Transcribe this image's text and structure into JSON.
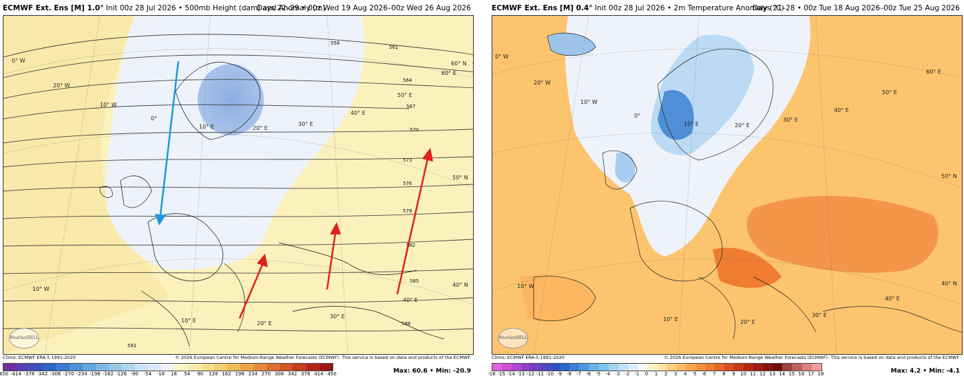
{
  "left": {
    "title_bold": "ECMWF Ext. Ens [M] 1.0°",
    "title_rest": "Init 00z 28 Jul 2026 • 500mb Height (dam) and Anomaly (m)",
    "title_right": "Days 22–29 • 00z Wed 19 Aug 2026–00z Wed 26 Aug 2026",
    "climo": "Climo: ECMWF ERA-5 1991-2020",
    "copyright": "© 2026 European Centre for Medium-Range Weather Forecasts (ECMWF). This service is based on data and products of the ECMWF.",
    "max_text": "Max: 60.6 • Min: -20.9",
    "logo": "WeatherBELL",
    "colorbar_ticks": [
      "-450",
      "-414",
      "-378",
      "-342",
      "-306",
      "-270",
      "-234",
      "-198",
      "-162",
      "-126",
      "-90",
      "-54",
      "-18",
      "18",
      "54",
      "90",
      "126",
      "162",
      "198",
      "234",
      "270",
      "306",
      "342",
      "378",
      "414",
      "450"
    ],
    "colorbar_colors": [
      "#6f2fa0",
      "#5a3fb5",
      "#3f4fc0",
      "#2e63c8",
      "#3a7ad0",
      "#4f92d8",
      "#66a6de",
      "#7fb8e3",
      "#98c8e8",
      "#b0d6ee",
      "#c8e2f3",
      "#dce9f8",
      "#eef3fb",
      "#fbf6c8",
      "#f8ecaa",
      "#f5df8a",
      "#f2cf6e",
      "#efbc5a",
      "#eca54a",
      "#e78c3c",
      "#df7032",
      "#d45528",
      "#c53c20",
      "#b2261c",
      "#9c1616"
    ],
    "contour_labels": [
      "558",
      "561",
      "564",
      "567",
      "570",
      "573",
      "576",
      "579",
      "582",
      "585",
      "588",
      "591"
    ],
    "map_labels": [
      "0° W",
      "20° W",
      "10° W",
      "0°",
      "10° E",
      "20° E",
      "30° E",
      "40° E",
      "50° E",
      "60° E",
      "60° N",
      "50° N",
      "40° N",
      "10° W",
      "10° E",
      "20° E",
      "30° E",
      "40° E"
    ]
  },
  "right": {
    "title_bold": "ECMWF Ext. Ens [M] 0.4°",
    "title_rest": "Init 00z 28 Jul 2026 • 2m Temperature Anomaly (°C)",
    "title_right": "Days 21–28 • 00z Tue 18 Aug 2026–00z Tue 25 Aug 2026",
    "climo": "Climo: ECMWF ERA-5 1991-2020",
    "copyright": "© 2026 European Centre for Medium-Range Weather Forecasts (ECMWF). This service is based on data and products of the ECMWF.",
    "max_text": "Max: 4.2 • Min: -4.1",
    "logo": "WeatherBELL",
    "colorbar_ticks": [
      "-16",
      "-15",
      "-14",
      "-13",
      "-12",
      "-11",
      "-10",
      "-9",
      "-8",
      "-7",
      "-6",
      "-5",
      "-4",
      "-3",
      "-2",
      "-1",
      "0",
      "1",
      "2",
      "3",
      "4",
      "5",
      "6",
      "7",
      "8",
      "9",
      "10",
      "11",
      "12",
      "13",
      "14",
      "15",
      "16",
      "17",
      "18"
    ],
    "colorbar_colors": [
      "#e060e0",
      "#d050d8",
      "#b048d0",
      "#9040c8",
      "#7040c0",
      "#5048c0",
      "#3050c8",
      "#2868d0",
      "#3a80d8",
      "#5098e0",
      "#68b0e8",
      "#80c4ee",
      "#a0d4f2",
      "#c0e2f6",
      "#dceef9",
      "#f4f8fc",
      "#fdf3c0",
      "#fde2a0",
      "#fdd080",
      "#fcbc66",
      "#f9a650",
      "#f5913e",
      "#ef7c30",
      "#e66426",
      "#d84e1e",
      "#c83a18",
      "#b62814",
      "#a01a10",
      "#88120c",
      "#700c08",
      "#a04040",
      "#c06060",
      "#e08080",
      "#f0a0a0"
    ],
    "map_labels": [
      "0° W",
      "20° W",
      "10° W",
      "0°",
      "10° E",
      "20° E",
      "30° E",
      "40° E",
      "50° E",
      "60° E",
      "50° N",
      "40° N",
      "10° W",
      "10° E",
      "20° E",
      "30° E",
      "40° E"
    ]
  }
}
